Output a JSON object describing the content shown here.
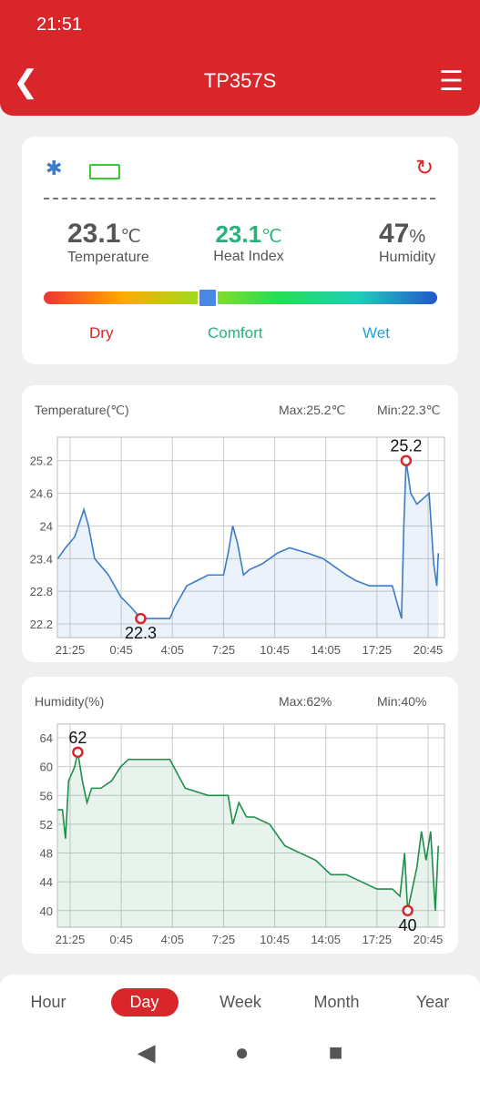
{
  "status_bar": {
    "time": "21:51"
  },
  "header": {
    "title": "TP357S"
  },
  "current": {
    "temperature": {
      "value": "23.1",
      "unit": "℃",
      "label": "Temperature"
    },
    "heat_index": {
      "value": "23.1",
      "unit": "℃",
      "label": "Heat Index"
    },
    "humidity": {
      "value": "47",
      "unit": "%",
      "label": "Humidity"
    },
    "scale": [
      "Dry",
      "Comfort",
      "Wet"
    ]
  },
  "chart_data": [
    {
      "type": "line",
      "title": "Temperature(℃)",
      "max_label": "Max:25.2℃",
      "min_label": "Min:22.3℃",
      "grid": true,
      "xlim": [
        -0.83,
        24.4
      ],
      "ylim": [
        21.95,
        25.63
      ],
      "xticks": [
        {
          "value": 0,
          "label": "21:25"
        },
        {
          "value": 3.333,
          "label": "0:45"
        },
        {
          "value": 6.667,
          "label": "4:05"
        },
        {
          "value": 10,
          "label": "7:25"
        },
        {
          "value": 13.333,
          "label": "10:45"
        },
        {
          "value": 16.667,
          "label": "14:05"
        },
        {
          "value": 20,
          "label": "17:25"
        },
        {
          "value": 23.333,
          "label": "20:45"
        }
      ],
      "yticks": [
        22.2,
        22.8,
        23.4,
        24.0,
        24.6,
        25.2
      ],
      "x": [
        -0.8,
        -0.3,
        0.3,
        0.9,
        1.2,
        1.6,
        2.5,
        3.3,
        4.0,
        4.6,
        5.2,
        6.5,
        6.8,
        7.6,
        8.3,
        9.0,
        10.0,
        10.3,
        10.6,
        10.9,
        11.3,
        11.7,
        12.5,
        13.5,
        14.3,
        15.5,
        16.5,
        17.0,
        18.0,
        18.6,
        19.5,
        21.0,
        21.6,
        21.75,
        21.9,
        22.2,
        22.6,
        23.0,
        23.4,
        23.7,
        23.9,
        24.0
      ],
      "series": [
        {
          "name": "Temperature",
          "color": "#3b7bc8",
          "values": [
            23.4,
            23.6,
            23.8,
            24.3,
            24.0,
            23.4,
            23.1,
            22.7,
            22.5,
            22.3,
            22.3,
            22.3,
            22.5,
            22.9,
            23.0,
            23.1,
            23.1,
            23.5,
            24.0,
            23.7,
            23.1,
            23.2,
            23.3,
            23.5,
            23.6,
            23.5,
            23.4,
            23.3,
            23.1,
            23.0,
            22.9,
            22.9,
            22.3,
            24.0,
            25.2,
            24.6,
            24.4,
            24.5,
            24.6,
            23.3,
            22.9,
            23.5
          ]
        }
      ],
      "annotations": [
        {
          "text": "25.2",
          "x": 21.9,
          "y": 25.2
        },
        {
          "text": "22.3",
          "x": 4.6,
          "y": 22.3
        }
      ]
    },
    {
      "type": "line",
      "title": "Humidity(%)",
      "max_label": "Max:62%",
      "min_label": "Min:40%",
      "grid": true,
      "xlim": [
        -0.83,
        24.4
      ],
      "ylim": [
        37.7,
        65.9
      ],
      "xticks": [
        {
          "value": 0,
          "label": "21:25"
        },
        {
          "value": 3.333,
          "label": "0:45"
        },
        {
          "value": 6.667,
          "label": "4:05"
        },
        {
          "value": 10,
          "label": "7:25"
        },
        {
          "value": 13.333,
          "label": "10:45"
        },
        {
          "value": 16.667,
          "label": "14:05"
        },
        {
          "value": 20,
          "label": "17:25"
        },
        {
          "value": 23.333,
          "label": "20:45"
        }
      ],
      "yticks": [
        40,
        44,
        48,
        52,
        56,
        60,
        64
      ],
      "x": [
        -0.8,
        -0.5,
        -0.3,
        -0.1,
        0.3,
        0.5,
        0.8,
        1.1,
        1.4,
        2.0,
        2.7,
        3.3,
        3.8,
        4.5,
        6.5,
        7.0,
        7.5,
        9.0,
        10.3,
        10.6,
        11.0,
        11.5,
        12.0,
        13.0,
        14.0,
        15.0,
        16.0,
        17.0,
        18.0,
        19.0,
        20.0,
        21.0,
        21.5,
        21.8,
        22.0,
        22.3,
        22.6,
        22.9,
        23.2,
        23.5,
        23.8,
        24.0
      ],
      "series": [
        {
          "name": "Humidity",
          "color": "#1f8e4b",
          "values": [
            54,
            54,
            50,
            58,
            60,
            62,
            58,
            55,
            57,
            57,
            58,
            60,
            61,
            61,
            61,
            59,
            57,
            56,
            56,
            52,
            55,
            53,
            53,
            52,
            49,
            48,
            47,
            45,
            45,
            44,
            43,
            43,
            42,
            48,
            40,
            43,
            46,
            51,
            47,
            51,
            40,
            49
          ]
        }
      ],
      "annotations": [
        {
          "text": "62",
          "x": 0.5,
          "y": 62
        },
        {
          "text": "40",
          "x": 22.0,
          "y": 40
        }
      ]
    }
  ],
  "tabs": {
    "items": [
      "Hour",
      "Day",
      "Week",
      "Month",
      "Year"
    ],
    "selected": 1
  }
}
